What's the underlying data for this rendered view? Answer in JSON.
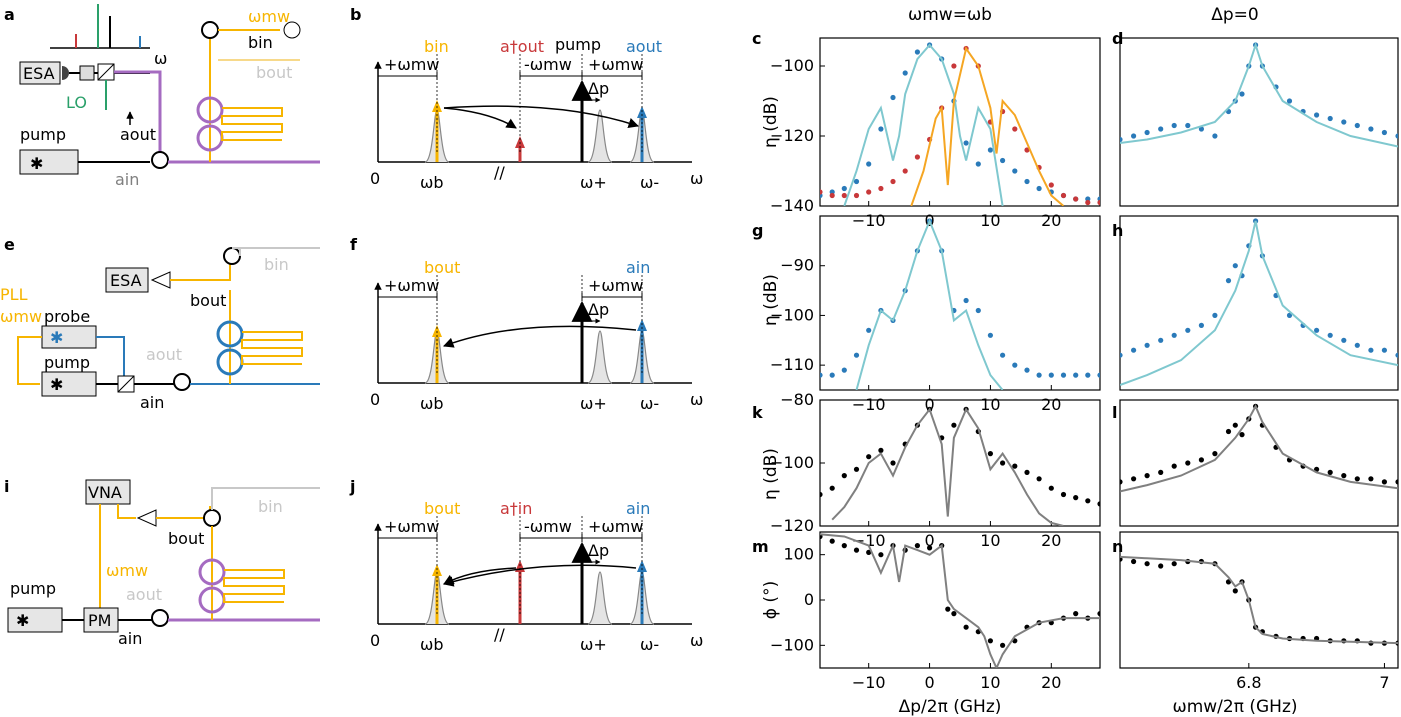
{
  "panel_letters": {
    "a": "a",
    "b": "b",
    "c": "c",
    "d": "d",
    "e": "e",
    "f": "f",
    "g": "g",
    "h": "h",
    "i": "i",
    "j": "j",
    "k": "k",
    "l": "l",
    "m": "m",
    "n": "n"
  },
  "column_titles": {
    "left": "ωmw=ωb",
    "right": "Δp=0"
  },
  "schematic_labels": {
    "esa": "ESA",
    "vna": "VNA",
    "pm": "PM",
    "pump": "pump",
    "probe": "probe",
    "lo": "LO",
    "pll": "PLL",
    "omega_mw": "ωmw",
    "omega": "ω",
    "b_in": "bin",
    "b_out": "bout",
    "a_in": "ain",
    "a_out": "aout"
  },
  "spectrum_labels": {
    "zero": "0",
    "omega_b": "ωb",
    "omega_plus": "ω+",
    "omega_minus": "ω-",
    "omega": "ω",
    "plus_omega_mw": "+ωmw",
    "minus_omega_mw": "-ωmw",
    "delta_p": "Δp",
    "pump": "pump",
    "b_in": "bin",
    "b_out": "bout",
    "a_dag_out": "a†out",
    "a_dag_in": "a†in",
    "a_out": "aout",
    "a_in": "ain"
  },
  "colors": {
    "blue": "#2a7ab9",
    "red": "#c8383a",
    "orange": "#f5a623",
    "yellow": "#f7b500",
    "green": "#2aa06a",
    "purple": "#a56bc1",
    "lightblue": "#7fc8cf",
    "gray": "#808080",
    "lightgray": "#c8c8c8"
  },
  "chart_data": [
    {
      "panel": "c",
      "type": "scatter",
      "ylabel": "η (dB)",
      "ylim": [
        -140,
        -92
      ],
      "xlim": [
        -18,
        28
      ],
      "yticks": [
        -140,
        -120,
        -100
      ],
      "xticks": [
        -10,
        0,
        10,
        20
      ],
      "series": [
        {
          "kind": "points",
          "color": "#2a7ab9",
          "x": [
            -18,
            -16,
            -14,
            -12,
            -10,
            -8,
            -6,
            -4,
            -2,
            0,
            2,
            4,
            6,
            8,
            10,
            12,
            14,
            16,
            18,
            20,
            22,
            24,
            26,
            28
          ],
          "y": [
            -137,
            -136,
            -135,
            -133,
            -128,
            -118,
            -109,
            -102,
            -96,
            -94,
            -98,
            -110,
            -122,
            -128,
            -124,
            -127,
            -130,
            -133,
            -135,
            -136,
            -137,
            -138,
            -138,
            -138
          ]
        },
        {
          "kind": "points",
          "color": "#c8383a",
          "x": [
            -18,
            -16,
            -14,
            -12,
            -10,
            -8,
            -6,
            -4,
            -2,
            0,
            2,
            4,
            6,
            8,
            10,
            12,
            14,
            16,
            18,
            20,
            22,
            24,
            26,
            28
          ],
          "y": [
            -136,
            -137,
            -137,
            -137,
            -136,
            -135,
            -133,
            -130,
            -126,
            -121,
            -112,
            -100,
            -95,
            -100,
            -116,
            -113,
            -118,
            -124,
            -129,
            -134,
            -137,
            -138,
            -139,
            -139
          ]
        },
        {
          "kind": "line",
          "color": "#7fc8cf",
          "x": [
            -14,
            -12,
            -10,
            -8,
            -6,
            -5,
            -4,
            -2,
            0,
            2,
            4,
            5,
            6,
            8,
            10,
            12
          ],
          "y": [
            -140,
            -130,
            -118,
            -112,
            -127,
            -120,
            -108,
            -98,
            -94,
            -98,
            -108,
            -120,
            -127,
            -112,
            -118,
            -140
          ]
        },
        {
          "kind": "line",
          "color": "#f5a623",
          "x": [
            -3,
            -1,
            1,
            2,
            3,
            4,
            6,
            8,
            10,
            11,
            12,
            14,
            16,
            18,
            20,
            22
          ],
          "y": [
            -140,
            -130,
            -115,
            -112,
            -134,
            -110,
            -95,
            -100,
            -112,
            -125,
            -110,
            -114,
            -122,
            -130,
            -137,
            -140
          ]
        }
      ]
    },
    {
      "panel": "d",
      "type": "scatter",
      "ylim": [
        -140,
        -92
      ],
      "xlim": [
        6.61,
        7.02
      ],
      "yticks": [],
      "xticks": [],
      "series": [
        {
          "kind": "points",
          "color": "#2a7ab9",
          "x": [
            6.61,
            6.63,
            6.65,
            6.67,
            6.69,
            6.71,
            6.73,
            6.75,
            6.77,
            6.78,
            6.79,
            6.8,
            6.81,
            6.82,
            6.84,
            6.86,
            6.88,
            6.9,
            6.92,
            6.94,
            6.96,
            6.98,
            7.0,
            7.02
          ],
          "y": [
            -121,
            -120,
            -119,
            -118,
            -117,
            -117,
            -118,
            -120,
            -113,
            -110,
            -108,
            -100,
            -94,
            -100,
            -106,
            -110,
            -113,
            -114,
            -115,
            -116,
            -117,
            -118,
            -119,
            -120
          ]
        },
        {
          "kind": "line",
          "color": "#7fc8cf",
          "x": [
            6.61,
            6.65,
            6.7,
            6.75,
            6.78,
            6.8,
            6.81,
            6.82,
            6.85,
            6.9,
            6.95,
            7.02
          ],
          "y": [
            -122,
            -121,
            -119,
            -116,
            -110,
            -100,
            -94,
            -100,
            -110,
            -116,
            -120,
            -123
          ]
        }
      ]
    },
    {
      "panel": "g",
      "type": "scatter",
      "ylabel": "η (dB)",
      "ylim": [
        -115,
        -80
      ],
      "xlim": [
        -18,
        28
      ],
      "yticks": [
        -110,
        -100,
        -90
      ],
      "xticks": [
        -10,
        0,
        10,
        20
      ],
      "series": [
        {
          "kind": "points",
          "color": "#2a7ab9",
          "x": [
            -18,
            -16,
            -14,
            -12,
            -10,
            -8,
            -6,
            -4,
            -2,
            0,
            2,
            4,
            6,
            8,
            10,
            12,
            14,
            16,
            18,
            20,
            22,
            24,
            26,
            28
          ],
          "y": [
            -112,
            -112,
            -111,
            -108,
            -103,
            -99,
            -101,
            -95,
            -87,
            -81,
            -87,
            -99,
            -97,
            -99,
            -104,
            -108,
            -110,
            -111,
            -112,
            -112,
            -112,
            -112,
            -112,
            -112
          ]
        },
        {
          "kind": "line",
          "color": "#7fc8cf",
          "x": [
            -12,
            -10,
            -8,
            -6,
            -4,
            -2,
            0,
            2,
            4,
            6,
            8,
            10,
            12
          ],
          "y": [
            -115,
            -106,
            -99,
            -101,
            -95,
            -87,
            -81,
            -87,
            -101,
            -99,
            -106,
            -112,
            -115
          ]
        }
      ]
    },
    {
      "panel": "h",
      "type": "scatter",
      "ylim": [
        -115,
        -80
      ],
      "xlim": [
        6.61,
        7.02
      ],
      "yticks": [],
      "xticks": [],
      "series": [
        {
          "kind": "points",
          "color": "#2a7ab9",
          "x": [
            6.61,
            6.63,
            6.65,
            6.67,
            6.69,
            6.71,
            6.73,
            6.75,
            6.77,
            6.78,
            6.79,
            6.8,
            6.81,
            6.82,
            6.84,
            6.86,
            6.88,
            6.9,
            6.92,
            6.94,
            6.96,
            6.98,
            7.0,
            7.02
          ],
          "y": [
            -108,
            -107,
            -106,
            -105,
            -104,
            -103,
            -102,
            -100,
            -93,
            -90,
            -92,
            -86,
            -81,
            -88,
            -96,
            -100,
            -102,
            -103,
            -104,
            -105,
            -106,
            -107,
            -107,
            -108
          ]
        },
        {
          "kind": "line",
          "color": "#7fc8cf",
          "x": [
            6.61,
            6.65,
            6.7,
            6.75,
            6.78,
            6.8,
            6.81,
            6.82,
            6.85,
            6.9,
            6.95,
            7.02
          ],
          "y": [
            -114,
            -112,
            -109,
            -103,
            -95,
            -87,
            -81,
            -88,
            -98,
            -104,
            -108,
            -110
          ]
        }
      ]
    },
    {
      "panel": "k",
      "type": "scatter",
      "ylabel": "η (dB)",
      "ylim": [
        -120,
        -80
      ],
      "xlim": [
        -18,
        28
      ],
      "yticks": [
        -120,
        -100,
        -80
      ],
      "xticks": [
        -10,
        0,
        10,
        20
      ],
      "series": [
        {
          "kind": "points",
          "color": "#000000",
          "x": [
            -18,
            -16,
            -14,
            -12,
            -10,
            -8,
            -6,
            -4,
            -2,
            0,
            2,
            4,
            6,
            8,
            10,
            12,
            14,
            16,
            18,
            20,
            22,
            24,
            26,
            28
          ],
          "y": [
            -110,
            -108,
            -104,
            -102,
            -98,
            -96,
            -100,
            -94,
            -88,
            -83,
            -92,
            -88,
            -83,
            -90,
            -97,
            -100,
            -101,
            -103,
            -105,
            -108,
            -110,
            -111,
            -112,
            -113
          ]
        },
        {
          "kind": "line",
          "color": "#808080",
          "x": [
            -16,
            -14,
            -12,
            -10,
            -8,
            -6,
            -4,
            -2,
            0,
            2,
            3,
            4,
            6,
            8,
            10,
            12,
            14,
            16,
            18,
            20,
            22
          ],
          "y": [
            -118,
            -114,
            -108,
            -100,
            -97,
            -104,
            -95,
            -88,
            -83,
            -94,
            -117,
            -92,
            -83,
            -89,
            -102,
            -97,
            -103,
            -110,
            -116,
            -119,
            -120
          ]
        }
      ]
    },
    {
      "panel": "l",
      "type": "scatter",
      "ylim": [
        -120,
        -80
      ],
      "xlim": [
        6.61,
        7.02
      ],
      "yticks": [],
      "xticks": [],
      "series": [
        {
          "kind": "points",
          "color": "#000000",
          "x": [
            6.61,
            6.63,
            6.65,
            6.67,
            6.69,
            6.71,
            6.73,
            6.75,
            6.77,
            6.78,
            6.79,
            6.8,
            6.81,
            6.82,
            6.84,
            6.86,
            6.88,
            6.9,
            6.92,
            6.94,
            6.96,
            6.98,
            7.0,
            7.02
          ],
          "y": [
            -106,
            -105,
            -104,
            -103,
            -101,
            -100,
            -99,
            -97,
            -90,
            -88,
            -91,
            -86,
            -82,
            -88,
            -95,
            -99,
            -101,
            -102,
            -103,
            -104,
            -105,
            -105,
            -106,
            -106
          ]
        },
        {
          "kind": "line",
          "color": "#808080",
          "x": [
            6.61,
            6.65,
            6.7,
            6.75,
            6.78,
            6.8,
            6.81,
            6.82,
            6.85,
            6.9,
            6.95,
            7.02
          ],
          "y": [
            -109,
            -107,
            -104,
            -99,
            -92,
            -86,
            -82,
            -87,
            -97,
            -103,
            -106,
            -108
          ]
        }
      ]
    },
    {
      "panel": "m",
      "type": "scatter",
      "ylabel": "ϕ (°)",
      "xlabel": "Δp/2π (GHz)",
      "ylim": [
        -150,
        150
      ],
      "xlim": [
        -18,
        28
      ],
      "yticks": [
        -100,
        0,
        100
      ],
      "xticks": [
        -10,
        0,
        10,
        20
      ],
      "series": [
        {
          "kind": "points",
          "color": "#000000",
          "x": [
            -18,
            -16,
            -14,
            -12,
            -10,
            -8,
            -6,
            -4,
            -2,
            0,
            2,
            3,
            4,
            6,
            8,
            10,
            12,
            14,
            16,
            18,
            20,
            22,
            24,
            26,
            28
          ],
          "y": [
            140,
            130,
            120,
            110,
            105,
            100,
            120,
            110,
            120,
            115,
            120,
            -20,
            -30,
            -60,
            -70,
            -90,
            -100,
            -90,
            -60,
            -50,
            -50,
            -40,
            -30,
            -40,
            -30
          ]
        },
        {
          "kind": "line",
          "color": "#808080",
          "x": [
            -18,
            -14,
            -10,
            -8,
            -6,
            -5,
            -4,
            -2,
            0,
            2,
            3,
            4,
            6,
            8,
            9,
            10,
            11,
            12,
            14,
            18,
            22,
            28
          ],
          "y": [
            145,
            140,
            120,
            60,
            120,
            40,
            120,
            110,
            100,
            120,
            0,
            -20,
            -40,
            -60,
            -80,
            -120,
            -150,
            -120,
            -80,
            -50,
            -40,
            -40
          ]
        }
      ]
    },
    {
      "panel": "n",
      "type": "scatter",
      "xlabel": "ωmw/2π (GHz)",
      "ylim": [
        -150,
        150
      ],
      "xlim": [
        6.61,
        7.02
      ],
      "yticks": [],
      "xticks": [
        6.8,
        7.0
      ],
      "series": [
        {
          "kind": "points",
          "color": "#000000",
          "x": [
            6.61,
            6.63,
            6.65,
            6.67,
            6.69,
            6.71,
            6.73,
            6.75,
            6.77,
            6.78,
            6.79,
            6.8,
            6.81,
            6.82,
            6.84,
            6.86,
            6.88,
            6.9,
            6.92,
            6.94,
            6.96,
            6.98,
            7.0,
            7.02
          ],
          "y": [
            90,
            85,
            80,
            75,
            80,
            85,
            85,
            80,
            40,
            20,
            40,
            0,
            -60,
            -70,
            -80,
            -85,
            -85,
            -85,
            -90,
            -90,
            -90,
            -95,
            -95,
            -95
          ]
        },
        {
          "kind": "line",
          "color": "#808080",
          "x": [
            6.61,
            6.65,
            6.7,
            6.75,
            6.77,
            6.78,
            6.79,
            6.8,
            6.81,
            6.82,
            6.85,
            6.9,
            6.95,
            7.02
          ],
          "y": [
            95,
            92,
            88,
            80,
            50,
            30,
            40,
            0,
            -60,
            -75,
            -85,
            -90,
            -92,
            -95
          ]
        }
      ]
    }
  ]
}
